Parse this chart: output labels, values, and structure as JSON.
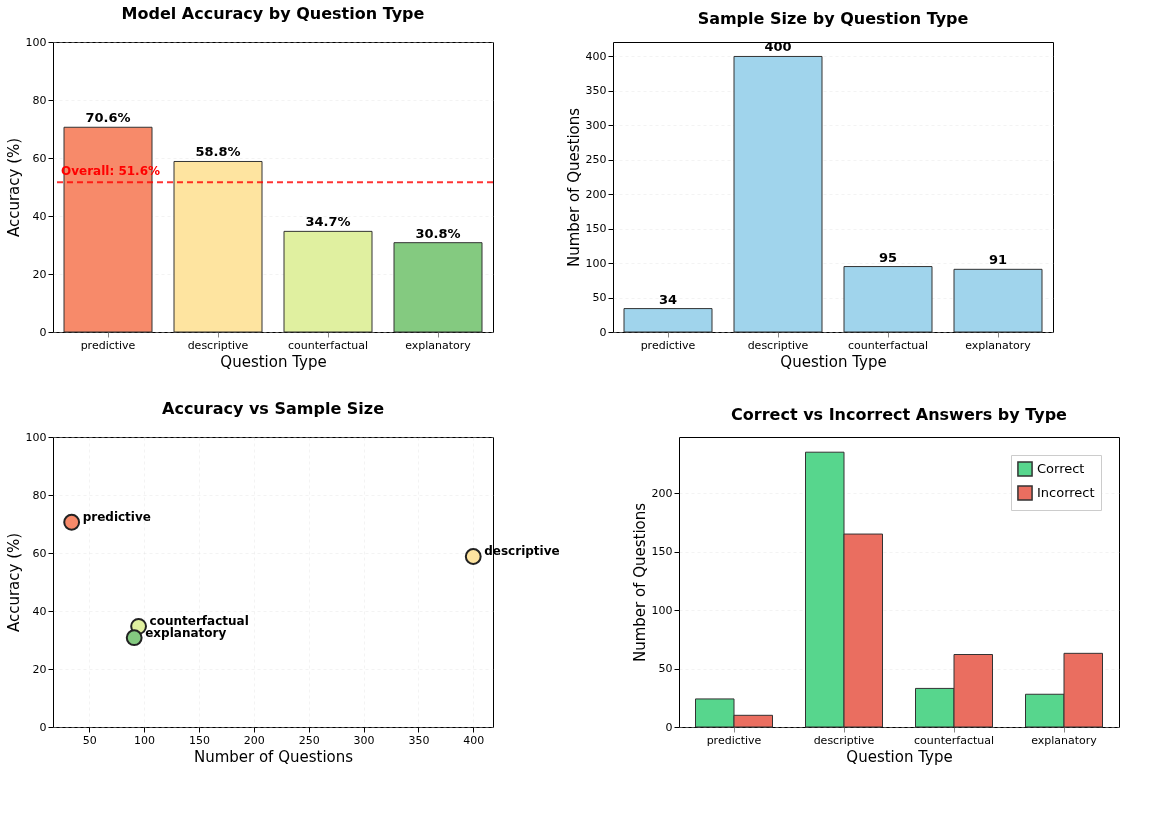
{
  "chart_data": [
    {
      "type": "bar",
      "title": "Model Accuracy by Question Type",
      "xlabel": "Question Type",
      "ylabel": "Accuracy (%)",
      "categories": [
        "predictive",
        "descriptive",
        "counterfactual",
        "explanatory"
      ],
      "values": [
        70.6,
        58.8,
        34.7,
        30.8
      ],
      "colors": [
        "#f78a6a",
        "#fee4a0",
        "#e0f0a0",
        "#84ca80"
      ],
      "value_labels": [
        "70.6%",
        "58.8%",
        "34.7%",
        "30.8%"
      ],
      "ylim": [
        0,
        100
      ],
      "yticks": [
        0,
        20,
        40,
        60,
        80,
        100
      ],
      "grid": "y",
      "ref_lines": [
        {
          "axis": "y",
          "value": 51.6,
          "label": "Overall: 51.6%",
          "color": "#ff0000",
          "line_style": "dashed"
        }
      ]
    },
    {
      "type": "bar",
      "title": "Sample Size by Question Type",
      "xlabel": "Question Type",
      "ylabel": "Number of Questions",
      "categories": [
        "predictive",
        "descriptive",
        "counterfactual",
        "explanatory"
      ],
      "values": [
        34,
        400,
        95,
        91
      ],
      "color": "#a0d4ec",
      "data_labels": true,
      "ylim": [
        0,
        421
      ],
      "yticks": [
        0,
        50,
        100,
        150,
        200,
        250,
        300,
        350,
        400
      ],
      "grid": "y"
    },
    {
      "type": "scatter",
      "title": "Accuracy vs Sample Size",
      "xlabel": "Number of Questions",
      "ylabel": "Accuracy (%)",
      "x": [
        34,
        400,
        95,
        91
      ],
      "values": [
        70.6,
        58.8,
        34.7,
        30.8
      ],
      "colors": [
        "#f78a6a",
        "#fee4a0",
        "#e0f0a0",
        "#84ca80"
      ],
      "marker": "circle",
      "xlim": [
        17,
        418
      ],
      "xticks": [
        50,
        100,
        150,
        200,
        250,
        300,
        350,
        400
      ],
      "ylim": [
        0,
        100
      ],
      "yticks": [
        0,
        20,
        40,
        60,
        80,
        100
      ],
      "grid": true,
      "annotations": [
        {
          "text": "predictive",
          "x": 34,
          "y": 70.6
        },
        {
          "text": "descriptive",
          "x": 400,
          "y": 58.8
        },
        {
          "text": "counterfactual",
          "x": 95,
          "y": 34.7
        },
        {
          "text": "explanatory",
          "x": 91,
          "y": 30.8
        }
      ]
    },
    {
      "type": "bar",
      "title": "Correct vs Incorrect Answers by Type",
      "xlabel": "Question Type",
      "ylabel": "Number of Questions",
      "categories": [
        "predictive",
        "descriptive",
        "counterfactual",
        "explanatory"
      ],
      "ylim": [
        0,
        248
      ],
      "yticks": [
        0,
        50,
        100,
        150,
        200
      ],
      "grid": "y",
      "legend": "top right",
      "series": [
        {
          "name": "Correct",
          "color": "#57d68d",
          "values": [
            24,
            235,
            33,
            28
          ]
        },
        {
          "name": "Incorrect",
          "color": "#ea6e60",
          "values": [
            10,
            165,
            62,
            63
          ]
        }
      ]
    }
  ]
}
